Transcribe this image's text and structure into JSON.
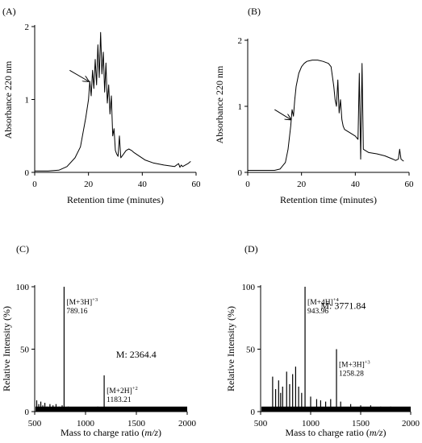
{
  "chart_data": [
    {
      "id": "A",
      "panel_label": "(A)",
      "type": "line",
      "xlabel": "Retention time  (minutes)",
      "ylabel": "Absorbance 220 nm",
      "xlim": [
        0,
        60
      ],
      "ylim": [
        0,
        2
      ],
      "xticks": [
        0,
        20,
        40,
        60
      ],
      "yticks": [
        0,
        1,
        2
      ],
      "arrow": {
        "from": [
          13,
          1.4
        ],
        "to": [
          20,
          1.25
        ]
      },
      "series": [
        {
          "x": [
            0,
            5,
            9,
            12,
            15,
            17,
            18,
            19,
            20,
            20.5,
            21,
            21.5,
            22,
            22.5,
            23,
            23.5,
            24,
            24.5,
            25,
            25.5,
            26,
            26.5,
            27,
            27.5,
            28,
            28.5,
            29,
            29.5,
            30,
            30.5,
            31,
            31.5,
            32,
            33,
            34,
            35,
            36,
            37,
            39,
            41,
            44,
            48,
            52,
            53.5,
            54,
            54.5,
            55,
            57,
            58
          ],
          "y": [
            0.02,
            0.02,
            0.03,
            0.08,
            0.2,
            0.35,
            0.55,
            0.75,
            1.0,
            1.25,
            1.05,
            1.4,
            1.15,
            1.55,
            1.2,
            1.75,
            1.3,
            1.92,
            1.35,
            1.65,
            1.1,
            1.5,
            0.95,
            1.2,
            0.8,
            1.05,
            0.5,
            0.6,
            0.3,
            0.25,
            0.22,
            0.5,
            0.2,
            0.25,
            0.3,
            0.32,
            0.3,
            0.27,
            0.22,
            0.17,
            0.13,
            0.1,
            0.08,
            0.12,
            0.07,
            0.1,
            0.08,
            0.12,
            0.15
          ]
        }
      ]
    },
    {
      "id": "B",
      "panel_label": "(B)",
      "type": "line",
      "xlabel": "Retention time  (minutes)",
      "ylabel": "Absorbance 220 nm",
      "xlim": [
        0,
        60
      ],
      "ylim": [
        0,
        2
      ],
      "xticks": [
        0,
        20,
        40,
        60
      ],
      "yticks": [
        0,
        1,
        2
      ],
      "arrow": {
        "from": [
          10,
          0.95
        ],
        "to": [
          16,
          0.8
        ]
      },
      "series": [
        {
          "x": [
            0,
            5,
            10,
            12,
            14,
            15,
            16,
            16.5,
            17,
            17.5,
            18,
            19,
            20,
            21,
            22,
            24,
            26,
            28,
            30,
            31,
            32,
            32.5,
            33,
            33.5,
            34,
            34.5,
            35,
            35.5,
            36,
            38,
            40,
            41,
            41.5,
            42,
            42.5,
            43,
            45,
            48,
            51,
            54,
            55,
            56,
            56.5,
            57,
            58
          ],
          "y": [
            0.03,
            0.03,
            0.03,
            0.05,
            0.15,
            0.35,
            0.7,
            0.95,
            0.85,
            1.1,
            1.3,
            1.5,
            1.6,
            1.65,
            1.68,
            1.7,
            1.7,
            1.68,
            1.65,
            1.6,
            1.3,
            1.1,
            1.0,
            1.4,
            0.9,
            1.1,
            0.8,
            0.7,
            0.65,
            0.6,
            0.55,
            0.5,
            1.5,
            0.2,
            1.65,
            0.35,
            0.3,
            0.28,
            0.25,
            0.2,
            0.18,
            0.2,
            0.35,
            0.2,
            0.17
          ]
        }
      ]
    },
    {
      "id": "C",
      "panel_label": "(C)",
      "type": "bar",
      "xlabel_prefix": "Mass to charge ratio (",
      "xlabel_italic": "m/z",
      "xlabel_suffix": ")",
      "ylabel": "Relative Intensity (%)",
      "xlim": [
        500,
        2000
      ],
      "ylim": [
        0,
        100
      ],
      "xticks": [
        500,
        1000,
        1500,
        2000
      ],
      "yticks": [
        0,
        50,
        100
      ],
      "mass_text": "M: 2364.4",
      "peaks": [
        {
          "mz": 789.16,
          "intensity": 100,
          "ion": "[M+3H]",
          "charge": "+3",
          "label": "789.16"
        },
        {
          "mz": 1183.21,
          "intensity": 29,
          "ion": "[M+2H]",
          "charge": "+2",
          "label": "1183.21"
        }
      ],
      "noise": [
        {
          "mz": 520,
          "intensity": 9
        },
        {
          "mz": 540,
          "intensity": 6
        },
        {
          "mz": 560,
          "intensity": 8
        },
        {
          "mz": 580,
          "intensity": 5
        },
        {
          "mz": 600,
          "intensity": 7
        },
        {
          "mz": 620,
          "intensity": 4
        },
        {
          "mz": 650,
          "intensity": 6
        },
        {
          "mz": 680,
          "intensity": 5
        },
        {
          "mz": 710,
          "intensity": 6
        },
        {
          "mz": 740,
          "intensity": 4
        },
        {
          "mz": 770,
          "intensity": 5
        },
        {
          "mz": 830,
          "intensity": 4
        },
        {
          "mz": 900,
          "intensity": 3
        },
        {
          "mz": 980,
          "intensity": 3
        },
        {
          "mz": 1050,
          "intensity": 3
        },
        {
          "mz": 1120,
          "intensity": 4
        },
        {
          "mz": 1250,
          "intensity": 3
        },
        {
          "mz": 1400,
          "intensity": 2
        },
        {
          "mz": 1600,
          "intensity": 3
        },
        {
          "mz": 1800,
          "intensity": 2
        },
        {
          "mz": 1950,
          "intensity": 2
        }
      ]
    },
    {
      "id": "D",
      "panel_label": "(D)",
      "type": "bar",
      "xlabel_prefix": "Mass to charge ratio (",
      "xlabel_italic": "m/z",
      "xlabel_suffix": ")",
      "ylabel": "Relative Intensity (%)",
      "xlim": [
        500,
        2000
      ],
      "ylim": [
        0,
        100
      ],
      "xticks": [
        500,
        1000,
        1500,
        2000
      ],
      "yticks": [
        0,
        50,
        100
      ],
      "mass_text": "M: 3771.84",
      "peaks": [
        {
          "mz": 943.96,
          "intensity": 100,
          "ion": "[M+4H]",
          "charge": "+4",
          "label": "943.96"
        },
        {
          "mz": 1258.28,
          "intensity": 50,
          "ion": "[M+3H]",
          "charge": "+3",
          "label": "1258.28"
        }
      ],
      "noise": [
        {
          "mz": 620,
          "intensity": 28
        },
        {
          "mz": 650,
          "intensity": 18
        },
        {
          "mz": 680,
          "intensity": 25
        },
        {
          "mz": 700,
          "intensity": 15
        },
        {
          "mz": 720,
          "intensity": 20
        },
        {
          "mz": 760,
          "intensity": 32
        },
        {
          "mz": 790,
          "intensity": 22
        },
        {
          "mz": 820,
          "intensity": 30
        },
        {
          "mz": 850,
          "intensity": 36
        },
        {
          "mz": 880,
          "intensity": 20
        },
        {
          "mz": 910,
          "intensity": 15
        },
        {
          "mz": 1000,
          "intensity": 12
        },
        {
          "mz": 1060,
          "intensity": 10
        },
        {
          "mz": 1100,
          "intensity": 9
        },
        {
          "mz": 1150,
          "intensity": 8
        },
        {
          "mz": 1200,
          "intensity": 10
        },
        {
          "mz": 1300,
          "intensity": 8
        },
        {
          "mz": 1400,
          "intensity": 6
        },
        {
          "mz": 1500,
          "intensity": 5
        },
        {
          "mz": 1600,
          "intensity": 5
        },
        {
          "mz": 1700,
          "intensity": 4
        },
        {
          "mz": 1800,
          "intensity": 4
        },
        {
          "mz": 1900,
          "intensity": 3
        }
      ]
    }
  ]
}
